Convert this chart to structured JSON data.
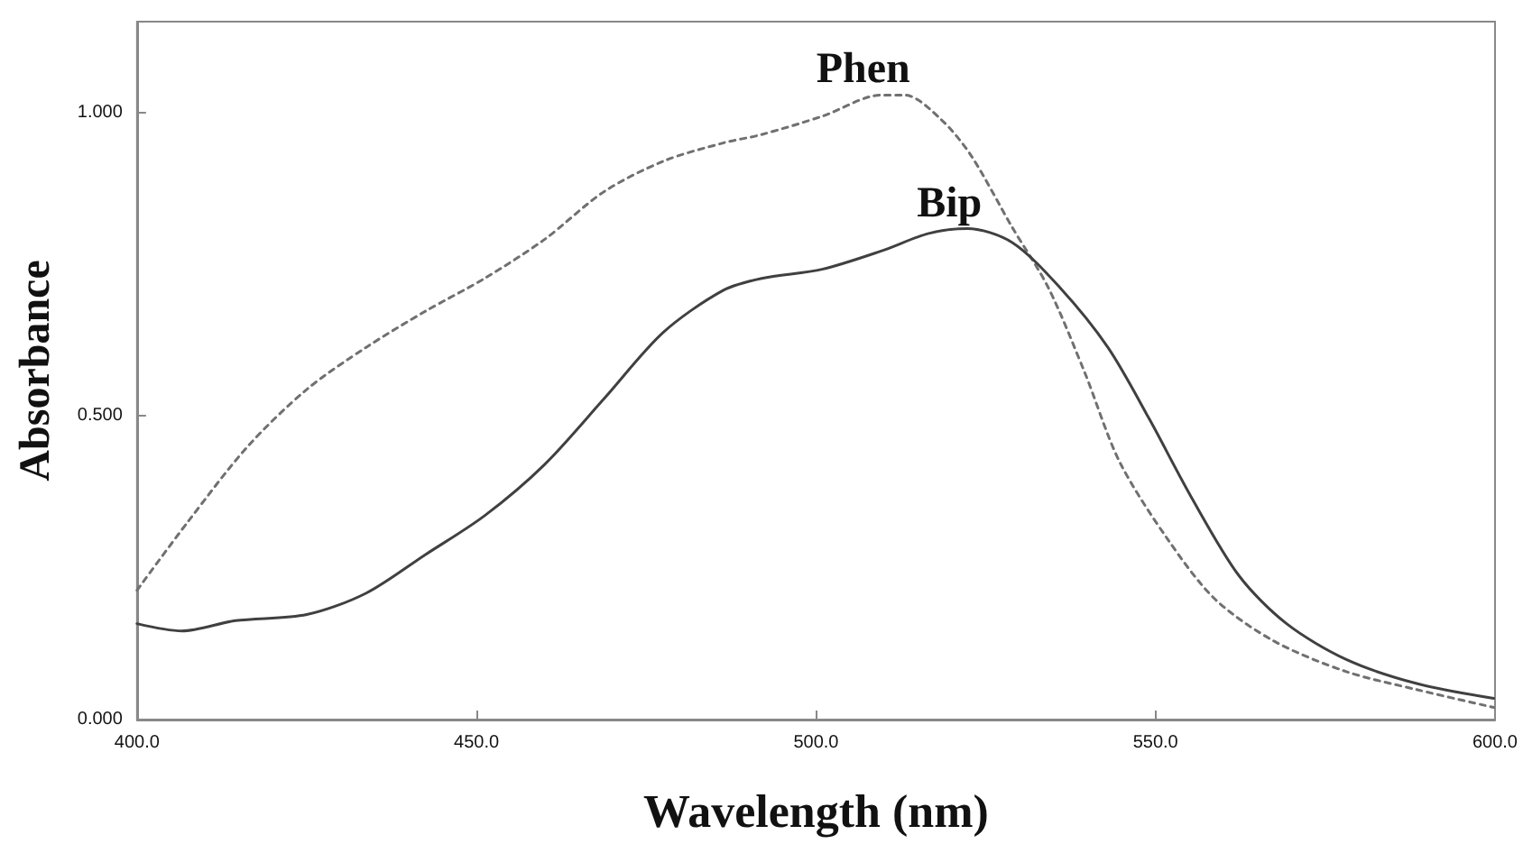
{
  "chart_data": {
    "type": "line",
    "xlabel": "Wavelength (nm)",
    "ylabel": "Absorbance",
    "xlim": [
      400,
      600
    ],
    "xticks": [
      {
        "value": 400,
        "label": "400.0"
      },
      {
        "value": 450,
        "label": "450.0"
      },
      {
        "value": 500,
        "label": "500.0"
      },
      {
        "value": 550,
        "label": "550.0"
      },
      {
        "value": 600,
        "label": "600.0"
      }
    ],
    "ylim": [
      0,
      1.15
    ],
    "yticks": [
      {
        "value": 0,
        "label": "0.000"
      },
      {
        "value": 0.5,
        "label": "0.500"
      },
      {
        "value": 1,
        "label": "1.000"
      }
    ],
    "grid": false,
    "legend": false,
    "marker": "none",
    "series": [
      {
        "name": "Phen",
        "color": "#707070",
        "line_style": "dashed",
        "x": [
          400,
          407.5,
          416.3,
          425,
          433.7,
          442.5,
          451.2,
          460,
          468.8,
          477.5,
          486.3,
          492,
          500.9,
          509.6,
          513.1,
          518.4,
          522.8,
          528.9,
          534.2,
          539.5,
          544.7,
          551.8,
          558.8,
          567.5,
          578.1,
          588.6,
          599.8
        ],
        "values": [
          0.213,
          0.326,
          0.45,
          0.544,
          0.613,
          0.673,
          0.727,
          0.791,
          0.87,
          0.92,
          0.95,
          0.964,
          0.994,
          1.029,
          1.029,
          0.989,
          0.93,
          0.811,
          0.712,
          0.574,
          0.425,
          0.297,
          0.198,
          0.129,
          0.079,
          0.049,
          0.02
        ]
      },
      {
        "name": "Bip",
        "color": "#404040",
        "line_style": "solid",
        "x": [
          400,
          406.6,
          414.5,
          425,
          433.7,
          442.5,
          451.2,
          460,
          468.8,
          477.5,
          486.3,
          492,
          500.9,
          509.6,
          516.6,
          522.3,
          528.9,
          535.9,
          543,
          549.1,
          555.3,
          562.3,
          569.3,
          578.1,
          588.6,
          599.8
        ],
        "values": [
          0.158,
          0.146,
          0.163,
          0.173,
          0.208,
          0.272,
          0.336,
          0.42,
          0.529,
          0.638,
          0.707,
          0.727,
          0.742,
          0.772,
          0.801,
          0.809,
          0.786,
          0.712,
          0.613,
          0.495,
          0.366,
          0.237,
          0.158,
          0.099,
          0.059,
          0.035
        ]
      }
    ]
  }
}
